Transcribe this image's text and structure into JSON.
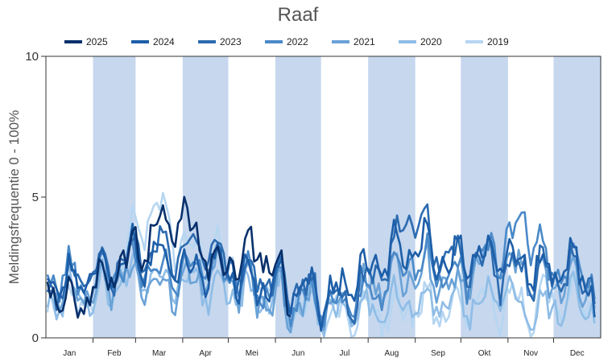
{
  "chart_data": {
    "type": "line",
    "title": "Raaf",
    "ylabel": "Meldingsfrequentie 0 - 100%",
    "xlabel": "",
    "ylim": [
      0,
      10
    ],
    "yticks": [
      "0",
      "5",
      "10"
    ],
    "months": [
      "Jan",
      "Feb",
      "Mar",
      "Apr",
      "Mei",
      "Jun",
      "Jul",
      "Aug",
      "Sep",
      "Okt",
      "Nov",
      "Dec"
    ],
    "shaded_months": [
      "Feb",
      "Apr",
      "Jun",
      "Aug",
      "Okt",
      "Dec"
    ],
    "shade_color": "#c6d7ee",
    "legend_position": "top",
    "series": [
      {
        "name": "2025",
        "color": "#08306b",
        "x_days": [
          1,
          11,
          21,
          31,
          41,
          51,
          61,
          71,
          81,
          91,
          101,
          111,
          121,
          131,
          141,
          151,
          161
        ],
        "values": [
          1.9,
          1.6,
          1.2,
          1.7,
          2.4,
          2.8,
          3.2,
          3.5,
          4.3,
          4.0,
          3.4,
          2.8,
          2.6,
          2.9,
          3.0,
          2.4,
          1.5
        ]
      },
      {
        "name": "2024",
        "color": "#1d5ea8",
        "x_days": [
          1,
          16,
          31,
          46,
          61,
          76,
          91,
          106,
          121,
          136,
          151,
          166,
          181,
          196,
          211,
          226,
          241,
          256,
          271,
          286,
          301,
          316,
          331,
          346,
          361
        ],
        "values": [
          2.1,
          1.8,
          2.3,
          2.8,
          3.0,
          2.7,
          2.5,
          2.6,
          2.3,
          2.0,
          1.8,
          1.6,
          1.5,
          1.7,
          2.4,
          2.9,
          3.2,
          3.0,
          2.8,
          2.9,
          3.0,
          2.6,
          2.3,
          2.8,
          1.6
        ]
      },
      {
        "name": "2023",
        "color": "#2c6bb0",
        "x_days": [
          1,
          16,
          31,
          46,
          61,
          76,
          91,
          106,
          121,
          136,
          151,
          166,
          181,
          196,
          211,
          226,
          241,
          256,
          271,
          286,
          301,
          316,
          331,
          346,
          361
        ],
        "values": [
          1.7,
          2.0,
          2.5,
          2.4,
          3.1,
          3.3,
          3.0,
          3.4,
          2.6,
          2.2,
          1.9,
          1.7,
          1.6,
          1.4,
          1.8,
          2.6,
          4.6,
          3.2,
          2.6,
          2.9,
          2.3,
          2.5,
          2.1,
          2.3,
          2.0
        ]
      },
      {
        "name": "2022",
        "color": "#4a89c8",
        "x_days": [
          1,
          16,
          31,
          46,
          61,
          76,
          91,
          106,
          121,
          136,
          151,
          166,
          181,
          196,
          211,
          226,
          241,
          256,
          271,
          286,
          301,
          316,
          331,
          346,
          361
        ],
        "values": [
          2.4,
          2.1,
          2.0,
          2.3,
          2.6,
          2.4,
          2.2,
          2.9,
          2.3,
          1.8,
          1.5,
          1.3,
          1.2,
          1.1,
          1.5,
          2.1,
          2.8,
          2.4,
          2.0,
          2.7,
          3.2,
          4.1,
          2.5,
          2.6,
          2.1
        ]
      },
      {
        "name": "2021",
        "color": "#6aa2d6",
        "x_days": [
          1,
          16,
          31,
          46,
          61,
          76,
          91,
          106,
          121,
          136,
          151,
          166,
          181,
          196,
          211,
          226,
          241,
          256,
          271,
          286,
          301,
          316,
          331,
          346,
          361
        ],
        "values": [
          1.9,
          1.5,
          1.7,
          2.0,
          2.2,
          1.9,
          2.0,
          2.2,
          2.0,
          1.6,
          1.3,
          1.2,
          1.1,
          1.3,
          1.7,
          1.9,
          2.3,
          2.1,
          1.6,
          2.5,
          3.0,
          2.2,
          1.8,
          2.0,
          1.7
        ]
      },
      {
        "name": "2020",
        "color": "#8fbde6",
        "x_days": [
          1,
          16,
          31,
          46,
          61,
          76,
          91,
          106,
          121,
          136,
          151,
          166,
          181,
          196,
          211,
          226,
          241,
          256,
          271,
          286,
          301,
          316,
          331,
          346,
          361
        ],
        "values": [
          1.4,
          1.6,
          1.5,
          1.8,
          2.4,
          2.1,
          1.9,
          1.8,
          1.7,
          1.4,
          1.5,
          1.2,
          1.0,
          0.8,
          1.0,
          0.9,
          1.2,
          1.3,
          1.2,
          1.4,
          1.6,
          1.2,
          1.0,
          1.3,
          1.1
        ]
      },
      {
        "name": "2019",
        "color": "#b6d6f2",
        "x_days": [
          1,
          16,
          31,
          46,
          61,
          76,
          91,
          106,
          121,
          136,
          151,
          166,
          181,
          196,
          211,
          226,
          241,
          256,
          271,
          286,
          301,
          316,
          331,
          346,
          361
        ],
        "values": [
          1.3,
          1.2,
          1.6,
          2.2,
          4.2,
          4.4,
          3.1,
          3.0,
          2.9,
          2.0,
          1.5,
          1.2,
          0.9,
          0.8,
          0.9,
          1.0,
          1.1,
          1.2,
          1.0,
          1.2,
          1.4,
          1.1,
          1.5,
          1.3,
          1.2
        ]
      }
    ]
  }
}
